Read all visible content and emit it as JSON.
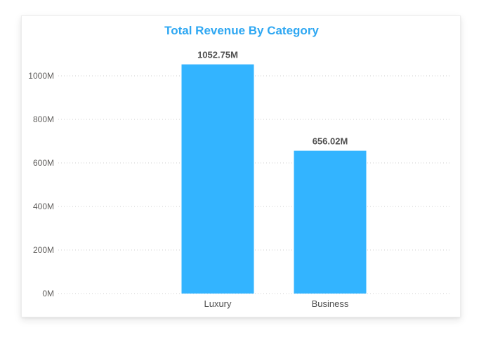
{
  "chart_data": {
    "type": "bar",
    "title": "Total Revenue By Category",
    "categories": [
      "Luxury",
      "Business"
    ],
    "values": [
      1052.75,
      656.02
    ],
    "data_labels": [
      "1052.75M",
      "656.02M"
    ],
    "unit": "M",
    "xlabel": "",
    "ylabel": "",
    "ylim": [
      0,
      1100
    ],
    "yticks": [
      0,
      200,
      400,
      600,
      800,
      1000
    ],
    "ytick_labels": [
      "0M",
      "200M",
      "400M",
      "600M",
      "800M",
      "1000M"
    ],
    "grid": true,
    "legend": "none"
  },
  "colors": {
    "title": "#2ea7f2",
    "bar": "#33b4ff"
  }
}
